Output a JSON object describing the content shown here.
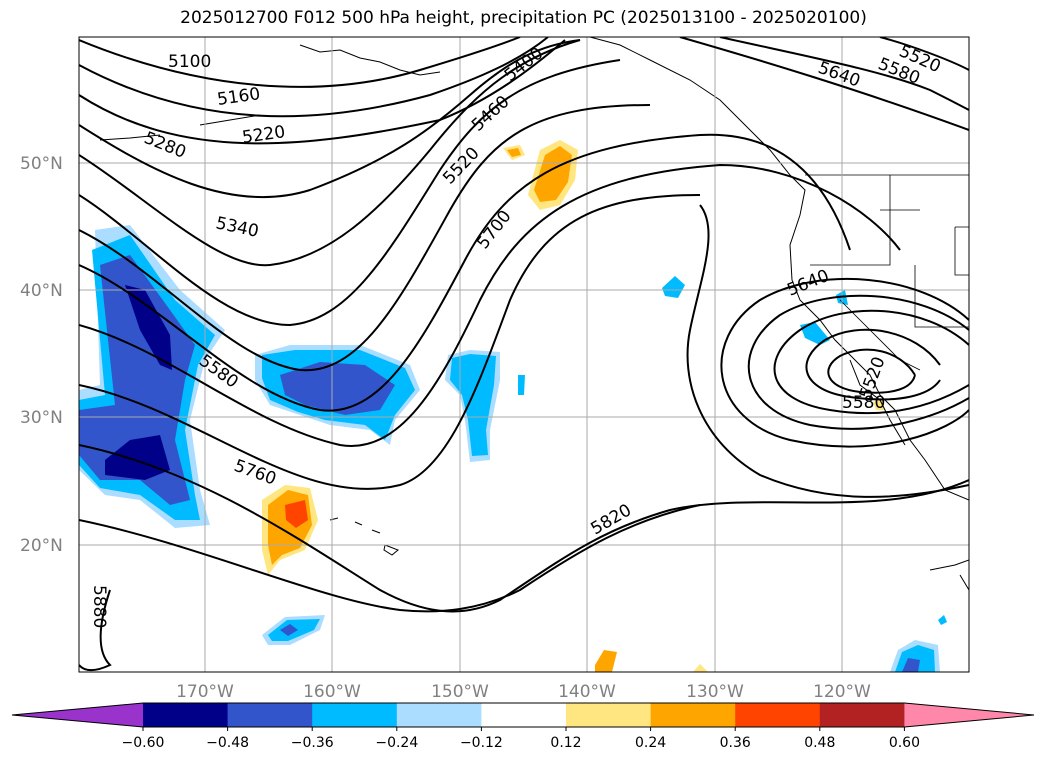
{
  "title": "2025012700 F012 500 hPa height, precipitation PC (2025013100 - 2025020100)",
  "lat_labels": [
    "50°N",
    "40°N",
    "30°N",
    "20°N"
  ],
  "lon_labels": [
    "170°W",
    "160°W",
    "150°W",
    "140°W",
    "130°W",
    "120°W"
  ],
  "contour_labels": [
    "5100",
    "5160",
    "5220",
    "5280",
    "5340",
    "5400",
    "5460",
    "5520",
    "5700",
    "5580",
    "5760",
    "5820",
    "5880",
    "5640",
    "5580",
    "5520",
    "5640",
    "5520",
    "5580"
  ],
  "colorbar": {
    "ticks": [
      "−0.60",
      "−0.48",
      "−0.36",
      "−0.24",
      "−0.12",
      "0.12",
      "0.24",
      "0.36",
      "0.48",
      "0.60"
    ],
    "colors": [
      "#9933cc",
      "#000088",
      "#3355cc",
      "#00bbff",
      "#aaddff",
      "#ffffff",
      "#ffe680",
      "#ffa500",
      "#ff4400",
      "#b22222",
      "#ff88aa"
    ]
  },
  "precip_colors": {
    "neg_strong": "#000088",
    "neg_mod": "#3355cc",
    "neg": "#00bbff",
    "neg_weak": "#aaddff",
    "pos_weak": "#ffe680",
    "pos": "#ffa500",
    "pos_mod": "#ff4400"
  }
}
